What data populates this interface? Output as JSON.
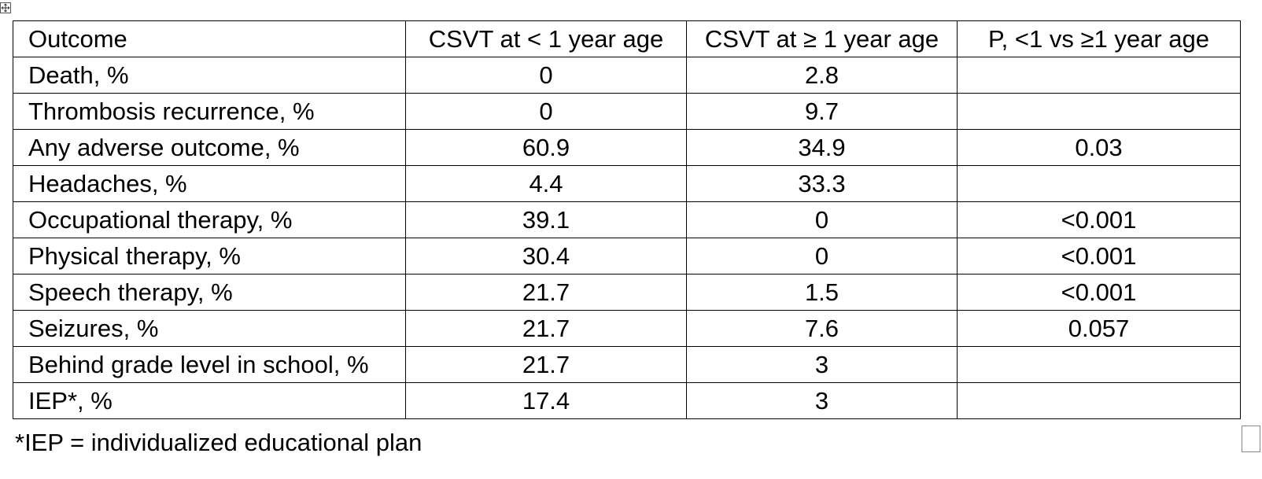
{
  "table": {
    "headers": [
      "Outcome",
      "CSVT at < 1 year age",
      "CSVT at ≥ 1 year age",
      "P, <1 vs ≥1 year age"
    ],
    "rows": [
      [
        "Death, %",
        "0",
        "2.8",
        ""
      ],
      [
        "Thrombosis recurrence, %",
        "0",
        "9.7",
        ""
      ],
      [
        "Any adverse outcome, %",
        "60.9",
        "34.9",
        "0.03"
      ],
      [
        "Headaches, %",
        "4.4",
        "33.3",
        ""
      ],
      [
        "Occupational therapy, %",
        "39.1",
        "0",
        "<0.001"
      ],
      [
        "Physical therapy, %",
        "30.4",
        "0",
        "<0.001"
      ],
      [
        "Speech therapy, %",
        "21.7",
        "1.5",
        "<0.001"
      ],
      [
        "Seizures, %",
        "21.7",
        "7.6",
        "0.057"
      ],
      [
        "Behind grade level in school, %",
        "21.7",
        "3",
        ""
      ],
      [
        "IEP*, %",
        "17.4",
        "3",
        ""
      ]
    ]
  },
  "footnote": "*IEP = individualized educational plan",
  "icons": {
    "table_move_handle": "table-move-handle-icon",
    "table_resize_handle": "table-resize-handle-icon"
  }
}
